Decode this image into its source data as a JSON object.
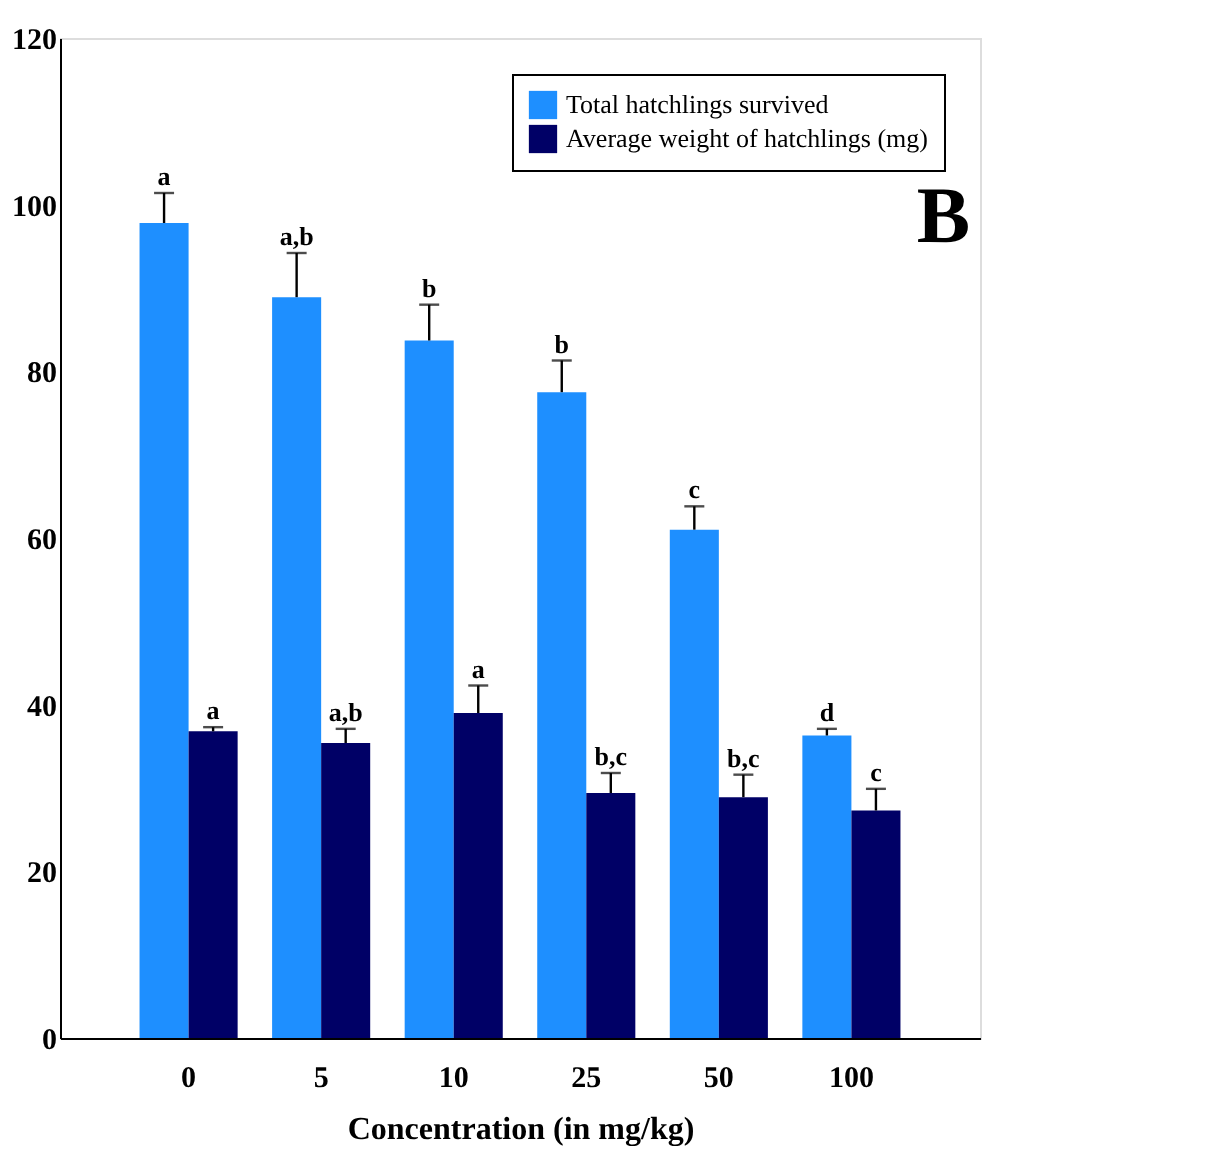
{
  "chart_data": {
    "type": "bar",
    "xlabel": "Concentration (in mg/kg)",
    "categories": [
      "0",
      "5",
      "10",
      "25",
      "50",
      "100"
    ],
    "series": [
      {
        "name": "Total hatchlings survived",
        "color": "#1e8fff",
        "values": [
          97.8,
          88.9,
          83.7,
          77.5,
          61,
          36.3
        ],
        "errors": [
          3.6,
          5.3,
          4.3,
          3.8,
          2.8,
          0.8
        ],
        "value_labels": [
          "a",
          "a,b",
          "b",
          "b",
          "c",
          "d"
        ]
      },
      {
        "name": "Average weight of hatchlings (mg)",
        "color": "#000066",
        "values": [
          36.8,
          35.4,
          39,
          29.4,
          28.9,
          27.3
        ],
        "errors": [
          0.5,
          1.7,
          3.3,
          2.4,
          2.7,
          2.6
        ],
        "value_labels": [
          "a",
          "a,b",
          "a",
          "b,c",
          "b,c",
          "c"
        ]
      }
    ],
    "ylim": [
      0,
      120
    ],
    "yticks": [
      0,
      20,
      40,
      60,
      80,
      100,
      120
    ],
    "grid": false,
    "legend": "top right",
    "annotations": [
      "B"
    ]
  }
}
